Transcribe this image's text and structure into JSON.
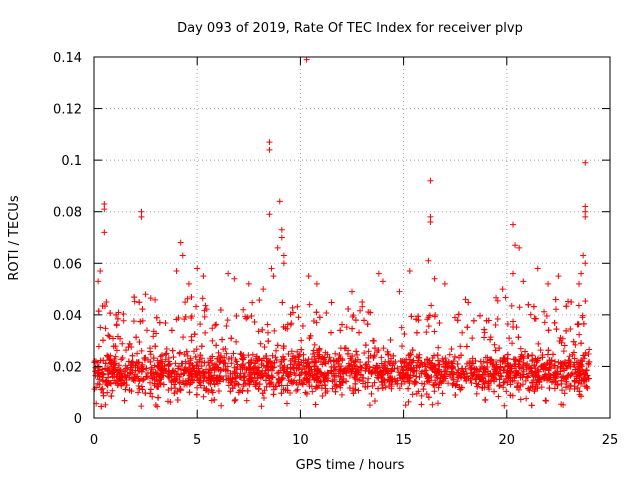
{
  "chart_data": {
    "type": "scatter",
    "title": "Day 093 of 2019, Rate Of TEC Index for receiver plvp",
    "xlabel": "GPS time / hours",
    "ylabel": "ROTI / TECUs",
    "xlim": [
      0,
      25
    ],
    "ylim": [
      0,
      0.14
    ],
    "x_ticks": [
      0,
      5,
      10,
      15,
      20,
      25
    ],
    "x_tick_labels": [
      "0",
      "5",
      "10",
      "15",
      "20",
      "25"
    ],
    "y_ticks": [
      0,
      0.02,
      0.04,
      0.06,
      0.08,
      0.1,
      0.12,
      0.14
    ],
    "y_tick_labels": [
      "0",
      "0.02",
      "0.04",
      "0.06",
      "0.08",
      "0.1",
      "0.12",
      "0.14"
    ],
    "grid": true,
    "marker": "+",
    "series_color": "#ff0000",
    "series": [
      {
        "name": "ROTI",
        "points": [
          [
            0.3,
            0.057
          ],
          [
            0.5,
            0.083
          ],
          [
            0.5,
            0.081
          ],
          [
            0.5,
            0.072
          ],
          [
            0.2,
            0.053
          ],
          [
            0.6,
            0.045
          ],
          [
            2.3,
            0.08
          ],
          [
            2.3,
            0.078
          ],
          [
            2.5,
            0.048
          ],
          [
            4.2,
            0.068
          ],
          [
            4.3,
            0.063
          ],
          [
            4.0,
            0.057
          ],
          [
            4.6,
            0.052
          ],
          [
            5.0,
            0.058
          ],
          [
            5.3,
            0.055
          ],
          [
            6.5,
            0.056
          ],
          [
            6.8,
            0.054
          ],
          [
            7.5,
            0.052
          ],
          [
            8.2,
            0.05
          ],
          [
            8.5,
            0.107
          ],
          [
            8.5,
            0.104
          ],
          [
            8.5,
            0.079
          ],
          [
            8.6,
            0.058
          ],
          [
            8.7,
            0.055
          ],
          [
            9.0,
            0.084
          ],
          [
            9.1,
            0.073
          ],
          [
            9.1,
            0.07
          ],
          [
            9.2,
            0.063
          ],
          [
            9.2,
            0.06
          ],
          [
            8.9,
            0.066
          ],
          [
            10.3,
            0.139
          ],
          [
            10.4,
            0.055
          ],
          [
            10.8,
            0.052
          ],
          [
            12.5,
            0.049
          ],
          [
            13.8,
            0.056
          ],
          [
            14.0,
            0.053
          ],
          [
            14.8,
            0.049
          ],
          [
            15.3,
            0.057
          ],
          [
            16.3,
            0.092
          ],
          [
            16.3,
            0.078
          ],
          [
            16.3,
            0.076
          ],
          [
            16.2,
            0.061
          ],
          [
            16.5,
            0.054
          ],
          [
            17.0,
            0.052
          ],
          [
            18.0,
            0.046
          ],
          [
            19.8,
            0.05
          ],
          [
            20.3,
            0.075
          ],
          [
            20.4,
            0.067
          ],
          [
            20.6,
            0.066
          ],
          [
            20.3,
            0.056
          ],
          [
            20.8,
            0.053
          ],
          [
            21.5,
            0.058
          ],
          [
            22.0,
            0.052
          ],
          [
            22.5,
            0.055
          ],
          [
            23.8,
            0.099
          ],
          [
            23.8,
            0.082
          ],
          [
            23.8,
            0.08
          ],
          [
            23.8,
            0.078
          ],
          [
            23.7,
            0.063
          ],
          [
            23.8,
            0.06
          ],
          [
            23.6,
            0.056
          ],
          [
            23.5,
            0.052
          ]
        ],
        "dense_band": {
          "x_range": [
            0,
            24
          ],
          "y_center": 0.018,
          "y_low": 0.004,
          "y_high": 0.04,
          "approx_points": 2880
        }
      }
    ]
  }
}
